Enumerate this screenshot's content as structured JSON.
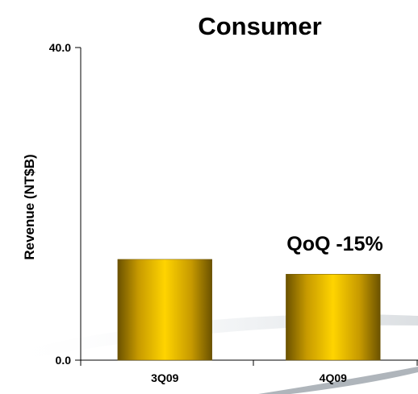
{
  "chart_data": {
    "type": "bar",
    "title": "Consumer",
    "xlabel": "",
    "ylabel": "Revenue (NT$B)",
    "categories": [
      "3Q09",
      "4Q09"
    ],
    "values": [
      12.9,
      11.0
    ],
    "ylim": [
      0,
      40
    ],
    "y_ticks": [
      "0.0",
      "40.0"
    ],
    "annotation": "QoQ -15%",
    "bar_color": "#f5c400",
    "bar_edge_color": "#6b5200",
    "grid": false,
    "legend": "none"
  }
}
